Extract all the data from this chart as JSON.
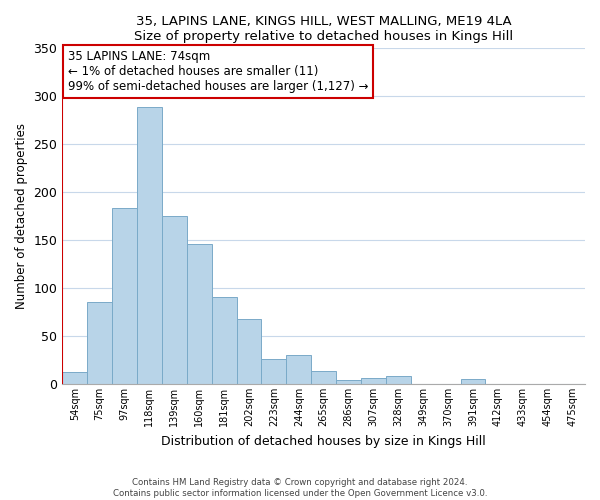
{
  "title1": "35, LAPINS LANE, KINGS HILL, WEST MALLING, ME19 4LA",
  "title2": "Size of property relative to detached houses in Kings Hill",
  "xlabel": "Distribution of detached houses by size in Kings Hill",
  "ylabel": "Number of detached properties",
  "bar_labels": [
    "54sqm",
    "75sqm",
    "97sqm",
    "118sqm",
    "139sqm",
    "160sqm",
    "181sqm",
    "202sqm",
    "223sqm",
    "244sqm",
    "265sqm",
    "286sqm",
    "307sqm",
    "328sqm",
    "349sqm",
    "370sqm",
    "391sqm",
    "412sqm",
    "433sqm",
    "454sqm",
    "475sqm"
  ],
  "bar_values": [
    13,
    85,
    184,
    289,
    175,
    146,
    91,
    68,
    26,
    30,
    14,
    4,
    6,
    8,
    0,
    0,
    5,
    0,
    0,
    0,
    0
  ],
  "highlight_bar_index": 0,
  "bar_color": "#b8d4e8",
  "bar_edge_color": "#7aaac8",
  "highlight_outline_color": "#cc0000",
  "ylim": [
    0,
    350
  ],
  "yticks": [
    0,
    50,
    100,
    150,
    200,
    250,
    300,
    350
  ],
  "annotation_text": "35 LAPINS LANE: 74sqm\n← 1% of detached houses are smaller (11)\n99% of semi-detached houses are larger (1,127) →",
  "annotation_box_color": "#ffffff",
  "annotation_box_edge": "#cc0000",
  "footer1": "Contains HM Land Registry data © Crown copyright and database right 2024.",
  "footer2": "Contains public sector information licensed under the Open Government Licence v3.0."
}
